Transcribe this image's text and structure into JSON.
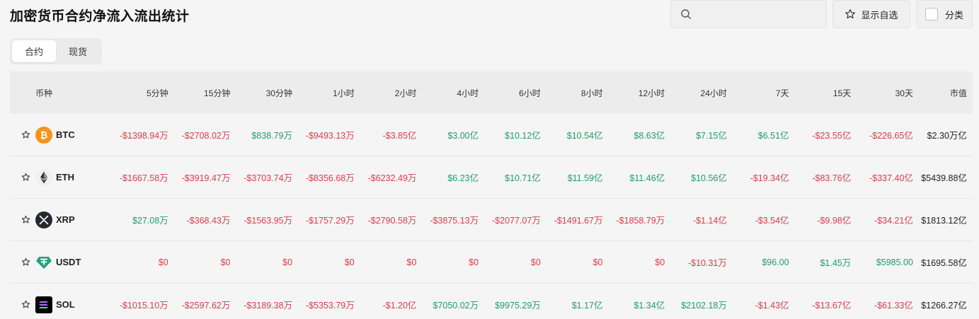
{
  "title": "加密货币合约净流入流出统计",
  "search": {
    "placeholder": ""
  },
  "fav_label": "显示自选",
  "category_label": "分类",
  "tabs": [
    {
      "label": "合约",
      "active": true
    },
    {
      "label": "现货",
      "active": false
    }
  ],
  "columns": [
    "币种",
    "5分钟",
    "15分钟",
    "30分钟",
    "1小时",
    "2小时",
    "4小时",
    "6小时",
    "8小时",
    "12小时",
    "24小时",
    "7天",
    "15天",
    "30天",
    "市值"
  ],
  "colors": {
    "positive": "#1f9e6e",
    "negative": "#e03c4b"
  },
  "rows": [
    {
      "symbol": "BTC",
      "icon": "bitcoin-icon",
      "values": [
        "-$1398.94万",
        "-$2708.02万",
        "$838.79万",
        "-$9493.13万",
        "-$3.85亿",
        "$3.00亿",
        "$10.12亿",
        "$10.54亿",
        "$8.63亿",
        "$7.15亿",
        "$6.51亿",
        "-$23.55亿",
        "-$226.65亿"
      ],
      "market_cap": "$2.30万亿"
    },
    {
      "symbol": "ETH",
      "icon": "ethereum-icon",
      "values": [
        "-$1667.58万",
        "-$3919.47万",
        "-$3703.74万",
        "-$8356.68万",
        "-$6232.49万",
        "$6.23亿",
        "$10.71亿",
        "$11.59亿",
        "$11.46亿",
        "$10.56亿",
        "-$19.34亿",
        "-$83.76亿",
        "-$337.40亿"
      ],
      "market_cap": "$5439.88亿"
    },
    {
      "symbol": "XRP",
      "icon": "xrp-icon",
      "values": [
        "$27.08万",
        "-$368.43万",
        "-$1563.95万",
        "-$1757.29万",
        "-$2790.58万",
        "-$3875.13万",
        "-$2077.07万",
        "-$1491.67万",
        "-$1858.79万",
        "-$1.14亿",
        "-$3.54亿",
        "-$9.98亿",
        "-$34.21亿"
      ],
      "market_cap": "$1813.12亿"
    },
    {
      "symbol": "USDT",
      "icon": "tether-icon",
      "values": [
        "$0",
        "$0",
        "$0",
        "$0",
        "$0",
        "$0",
        "$0",
        "$0",
        "$0",
        "-$10.31万",
        "$96.00",
        "$1.45万",
        "$5985.00"
      ],
      "market_cap": "$1695.58亿"
    },
    {
      "symbol": "SOL",
      "icon": "solana-icon",
      "values": [
        "-$1015.10万",
        "-$2597.62万",
        "-$3189.38万",
        "-$5353.79万",
        "-$1.20亿",
        "$7050.02万",
        "$9975.29万",
        "$1.17亿",
        "$1.34亿",
        "$2102.18万",
        "-$1.43亿",
        "-$13.67亿",
        "-$61.33亿"
      ],
      "market_cap": "$1266.27亿"
    }
  ]
}
